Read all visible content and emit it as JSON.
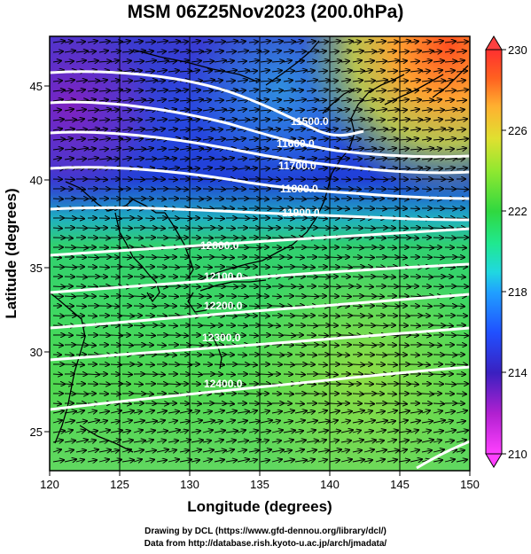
{
  "title": "MSM 06Z25Nov2023 (200.0hPa)",
  "footer": {
    "line1": "Drawing by DCL (https://www.gfd-dennou.org/library/dcl/)",
    "line2": "Data from http://database.rish.kyoto-u.ac.jp/arch/jmadata/"
  },
  "map": {
    "xlabel": "Longitude (degrees)",
    "ylabel": "Latitude  (degrees)",
    "xlim": [
      120,
      150
    ],
    "ylim": [
      22.4,
      47.6
    ],
    "xticks": [
      "120",
      "125",
      "130",
      "135",
      "140",
      "145",
      "150"
    ],
    "yticks": [
      "25",
      "30",
      "35",
      "40",
      "45"
    ],
    "grid_lon": [
      125,
      130,
      135,
      140,
      145
    ],
    "contour_labels": [
      "11500.0",
      "11600.0",
      "11700.0",
      "11800.0",
      "11900.0",
      "12000.0",
      "12100.0",
      "12200.0",
      "12300.0",
      "12400.0"
    ]
  },
  "colorbar": {
    "ticks": [
      "230",
      "226",
      "222",
      "218",
      "214",
      "210"
    ],
    "min": 210,
    "max": 230,
    "colors": [
      "#ff40ff",
      "#b020d0",
      "#3a20c0",
      "#2050ff",
      "#20c0ff",
      "#20e8a0",
      "#30d840",
      "#90e830",
      "#e0e030",
      "#ffb030",
      "#ff6020",
      "#ff3030"
    ]
  }
}
